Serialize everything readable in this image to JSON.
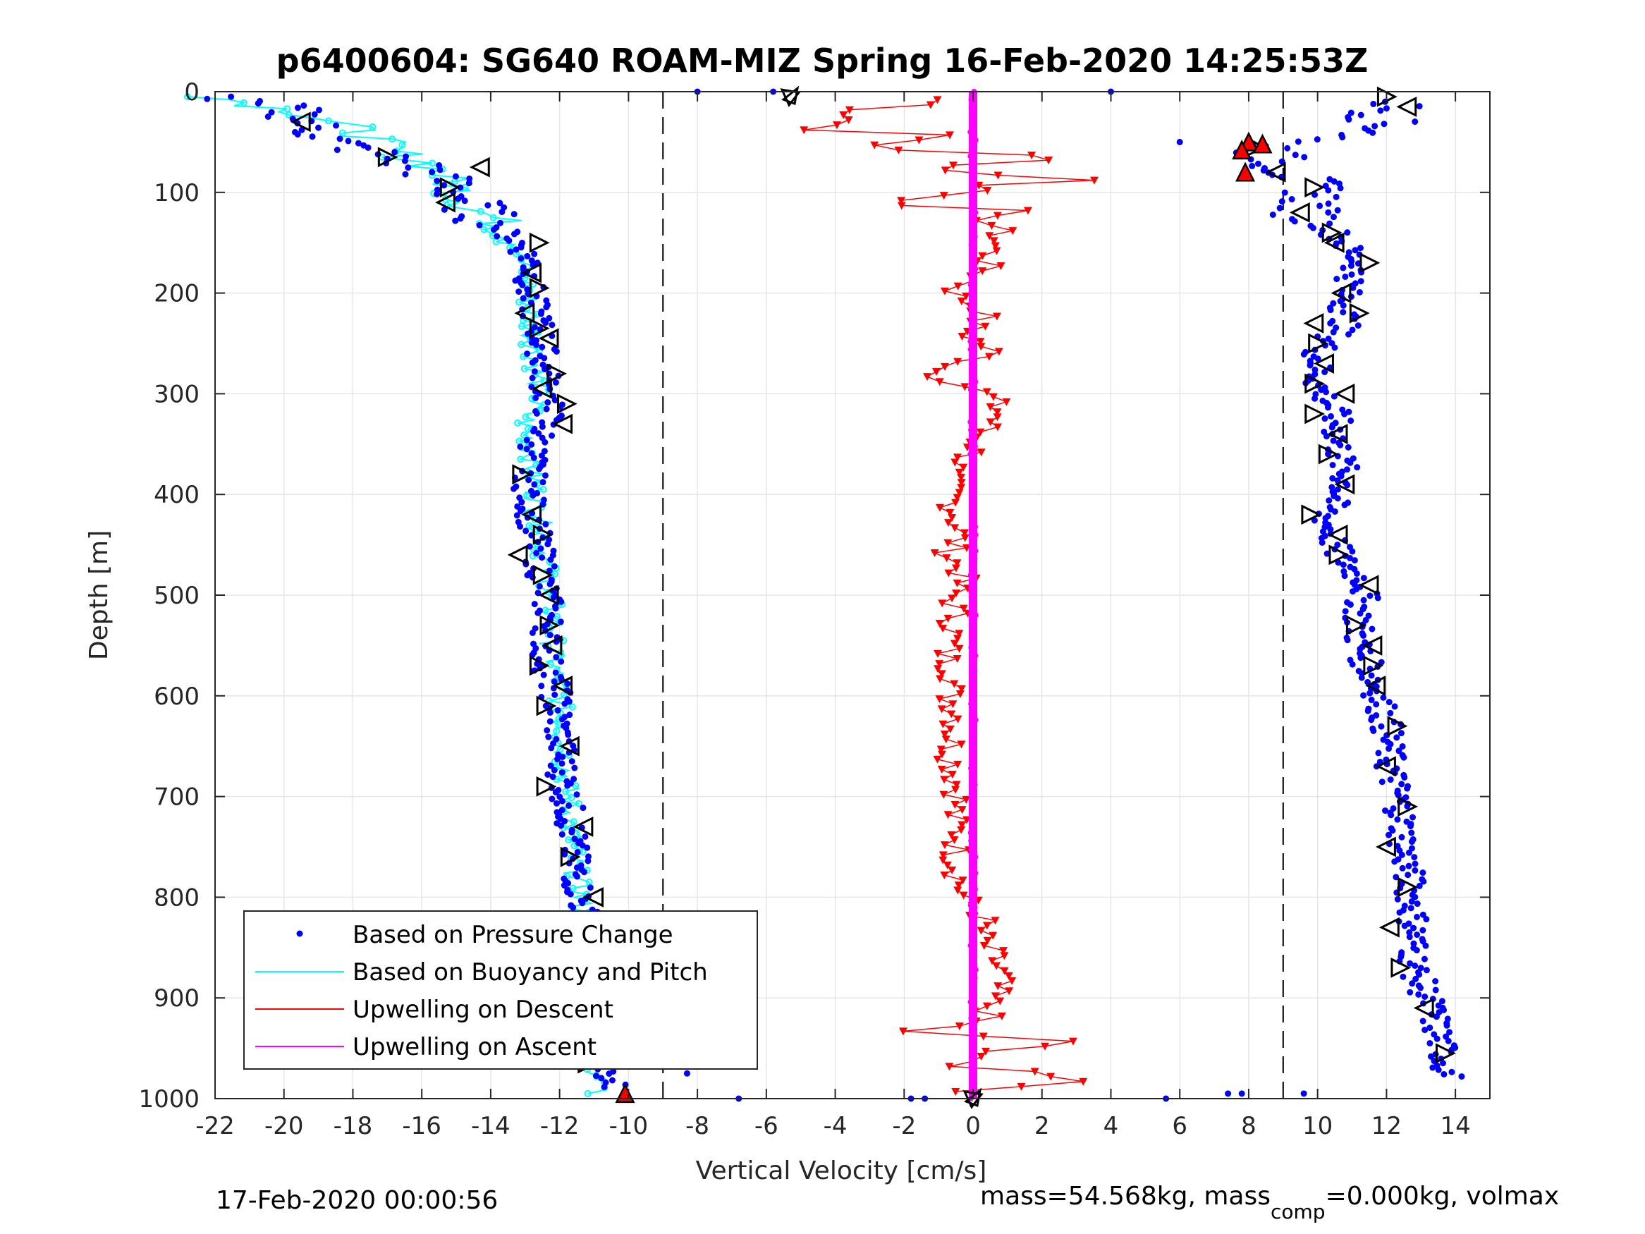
{
  "chart_data": {
    "type": "scatter",
    "title": "p6400604: SG640 ROAM-MIZ Spring 16-Feb-2020 14:25:53Z",
    "xlabel": "Vertical Velocity [cm/s]",
    "ylabel": "Depth [m]",
    "xlim": [
      -22,
      15
    ],
    "ylim": [
      1000,
      0
    ],
    "y_reversed": true,
    "grid": true,
    "xticks": [
      -22,
      -20,
      -18,
      -16,
      -14,
      -12,
      -10,
      -8,
      -6,
      -4,
      -2,
      0,
      2,
      4,
      6,
      8,
      10,
      12,
      14
    ],
    "xtick_labels": [
      "-22",
      "-20",
      "-18",
      "-16",
      "-14",
      "-12",
      "-10",
      "-8",
      "-6",
      "-4",
      "-2",
      "0",
      "2",
      "4",
      "6",
      "8",
      "10",
      "12",
      "14"
    ],
    "yticks": [
      0,
      100,
      200,
      300,
      400,
      500,
      600,
      700,
      800,
      900,
      1000
    ],
    "ytick_labels": [
      "0",
      "100",
      "200",
      "300",
      "400",
      "500",
      "600",
      "700",
      "800",
      "900",
      "1000"
    ],
    "reference_lines_x": [
      -9,
      9
    ],
    "legend_position": "lower-left",
    "colors": {
      "pressure": "#0000ff",
      "buoyancy": "#00ffff",
      "descent": "#ff0000",
      "ascent": "#ff00ff",
      "marker_outline": "#000000"
    },
    "series": [
      {
        "name": "Based on Pressure Change",
        "style": "dots",
        "profiles": [
          {
            "phase": "descent",
            "points": [
              [
                -22,
                5
              ],
              [
                -21.5,
                10
              ],
              [
                -20,
                15
              ],
              [
                -19.5,
                25
              ],
              [
                -19,
                40
              ],
              [
                -18.5,
                50
              ],
              [
                -18,
                55
              ],
              [
                -17,
                65
              ],
              [
                -16,
                75
              ],
              [
                -15.3,
                90
              ],
              [
                -14.8,
                105
              ],
              [
                -14,
                130
              ],
              [
                -13.2,
                150
              ],
              [
                -12.8,
                170
              ],
              [
                -12.9,
                200
              ],
              [
                -12.6,
                230
              ],
              [
                -12.5,
                260
              ],
              [
                -12.4,
                290
              ],
              [
                -12.3,
                320
              ],
              [
                -12.8,
                360
              ],
              [
                -12.9,
                400
              ],
              [
                -12.7,
                440
              ],
              [
                -12.5,
                480
              ],
              [
                -12.3,
                520
              ],
              [
                -12.4,
                560
              ],
              [
                -12.1,
                600
              ],
              [
                -12.0,
                640
              ],
              [
                -11.9,
                680
              ],
              [
                -11.7,
                720
              ],
              [
                -11.6,
                760
              ],
              [
                -11.4,
                800
              ],
              [
                -11.1,
                840
              ],
              [
                -10.8,
                880
              ],
              [
                -10.8,
                920
              ],
              [
                -10.9,
                960
              ],
              [
                -10.4,
                990
              ]
            ]
          },
          {
            "phase": "ascent",
            "points": [
              [
                12.4,
                10
              ],
              [
                11.8,
                25
              ],
              [
                12.0,
                40
              ],
              [
                9.0,
                50
              ],
              [
                8.5,
                60
              ],
              [
                9.2,
                80
              ],
              [
                10.0,
                100
              ],
              [
                9.6,
                120
              ],
              [
                10.5,
                140
              ],
              [
                11.2,
                170
              ],
              [
                10.8,
                200
              ],
              [
                10.8,
                230
              ],
              [
                10.0,
                260
              ],
              [
                10.0,
                290
              ],
              [
                10.5,
                320
              ],
              [
                10.6,
                350
              ],
              [
                10.8,
                390
              ],
              [
                10.2,
                420
              ],
              [
                10.6,
                460
              ],
              [
                11.4,
                490
              ],
              [
                11.2,
                520
              ],
              [
                11.2,
                550
              ],
              [
                11.7,
                590
              ],
              [
                12.0,
                630
              ],
              [
                12.1,
                670
              ],
              [
                12.4,
                710
              ],
              [
                12.5,
                750
              ],
              [
                12.7,
                790
              ],
              [
                12.8,
                830
              ],
              [
                12.8,
                870
              ],
              [
                13.3,
                910
              ],
              [
                13.6,
                950
              ],
              [
                13.8,
                980
              ]
            ]
          }
        ],
        "outliers": [
          [
            -5.8,
            0
          ],
          [
            -8,
            0
          ],
          [
            4,
            0
          ],
          [
            6,
            50
          ],
          [
            -8.3,
            975
          ],
          [
            -8.2,
            940
          ],
          [
            -6.8,
            1000
          ],
          [
            -1.8,
            1000
          ],
          [
            -1.4,
            1000
          ],
          [
            5.6,
            1000
          ],
          [
            7.4,
            995
          ],
          [
            7.8,
            995
          ],
          [
            9.6,
            995
          ]
        ]
      },
      {
        "name": "Based on Buoyancy and Pitch",
        "style": "line-with-circles",
        "points": [
          [
            -22,
            5
          ],
          [
            -20.5,
            15
          ],
          [
            -19.5,
            20
          ],
          [
            -18.5,
            30
          ],
          [
            -17.5,
            45
          ],
          [
            -16.8,
            60
          ],
          [
            -15.8,
            72
          ],
          [
            -15.3,
            85
          ],
          [
            -14.9,
            100
          ],
          [
            -14.5,
            115
          ],
          [
            -13.7,
            130
          ],
          [
            -13.2,
            150
          ],
          [
            -13.0,
            180
          ],
          [
            -12.9,
            210
          ],
          [
            -12.8,
            240
          ],
          [
            -12.7,
            270
          ],
          [
            -12.6,
            300
          ],
          [
            -13.0,
            330
          ],
          [
            -12.8,
            360
          ],
          [
            -12.7,
            400
          ],
          [
            -12.5,
            440
          ],
          [
            -12.4,
            480
          ],
          [
            -12.2,
            520
          ],
          [
            -12.2,
            560
          ],
          [
            -12.0,
            600
          ],
          [
            -11.9,
            640
          ],
          [
            -11.8,
            680
          ],
          [
            -11.7,
            720
          ],
          [
            -11.6,
            760
          ],
          [
            -11.4,
            800
          ],
          [
            -11.3,
            840
          ],
          [
            -11.2,
            880
          ],
          [
            -11.1,
            920
          ],
          [
            -11.0,
            960
          ],
          [
            -10.9,
            990
          ]
        ]
      },
      {
        "name": "Upwelling on Descent",
        "style": "line-with-down-triangles",
        "points": [
          [
            -1.0,
            10
          ],
          [
            -2.5,
            20
          ],
          [
            -4.2,
            35
          ],
          [
            -1.5,
            45
          ],
          [
            -2.8,
            55
          ],
          [
            0.5,
            62
          ],
          [
            2.0,
            70
          ],
          [
            -1.5,
            80
          ],
          [
            3.8,
            85
          ],
          [
            0.8,
            95
          ],
          [
            -1.2,
            105
          ],
          [
            0.2,
            120
          ],
          [
            0.8,
            140
          ],
          [
            0.5,
            160
          ],
          [
            0.3,
            180
          ],
          [
            -0.6,
            200
          ],
          [
            0.4,
            220
          ],
          [
            -0.2,
            240
          ],
          [
            0.6,
            260
          ],
          [
            -1.2,
            280
          ],
          [
            0.4,
            300
          ],
          [
            0.8,
            320
          ],
          [
            0.2,
            340
          ],
          [
            0.0,
            360
          ],
          [
            -0.8,
            380
          ],
          [
            -0.6,
            400
          ],
          [
            -0.5,
            420
          ],
          [
            -0.4,
            440
          ],
          [
            -0.7,
            460
          ],
          [
            -0.3,
            480
          ],
          [
            -0.6,
            500
          ],
          [
            -0.5,
            520
          ],
          [
            -0.6,
            540
          ],
          [
            -0.8,
            560
          ],
          [
            -0.5,
            580
          ],
          [
            -0.7,
            600
          ],
          [
            -0.4,
            620
          ],
          [
            -0.6,
            640
          ],
          [
            -0.6,
            660
          ],
          [
            -0.5,
            680
          ],
          [
            -0.4,
            700
          ],
          [
            -0.6,
            720
          ],
          [
            -0.4,
            740
          ],
          [
            -0.5,
            760
          ],
          [
            -0.4,
            780
          ],
          [
            -0.3,
            800
          ],
          [
            0.3,
            820
          ],
          [
            0.2,
            840
          ],
          [
            0.6,
            860
          ],
          [
            0.8,
            880
          ],
          [
            0.5,
            900
          ],
          [
            0.4,
            920
          ],
          [
            -2.0,
            935
          ],
          [
            3.0,
            945
          ],
          [
            -1.6,
            960
          ],
          [
            2.8,
            975
          ],
          [
            0.6,
            990
          ]
        ]
      },
      {
        "name": "Upwelling on Ascent",
        "style": "thick-line-with-dots",
        "points": [
          [
            0,
            0
          ],
          [
            0,
            100
          ],
          [
            0,
            200
          ],
          [
            0,
            300
          ],
          [
            0,
            400
          ],
          [
            0,
            500
          ],
          [
            0,
            600
          ],
          [
            0,
            700
          ],
          [
            0,
            800
          ],
          [
            0,
            900
          ],
          [
            0,
            1000
          ]
        ]
      }
    ],
    "triangle_markers": {
      "description": "open triangles along the velocity profiles",
      "descent": [
        [
          -19.5,
          30
        ],
        [
          -17,
          65
        ],
        [
          -14.3,
          75
        ],
        [
          -15.2,
          95
        ],
        [
          -15.3,
          110
        ],
        [
          -12.6,
          150
        ],
        [
          -12.8,
          180
        ],
        [
          -12.6,
          195
        ],
        [
          -13.0,
          220
        ],
        [
          -12.6,
          235
        ],
        [
          -12.3,
          245
        ],
        [
          -12.1,
          280
        ],
        [
          -12.5,
          295
        ],
        [
          -11.8,
          310
        ],
        [
          -11.9,
          330
        ],
        [
          -13.1,
          380
        ],
        [
          -12.8,
          420
        ],
        [
          -12.5,
          440
        ],
        [
          -13.2,
          460
        ],
        [
          -12.5,
          480
        ],
        [
          -12.3,
          500
        ],
        [
          -12.3,
          530
        ],
        [
          -12.2,
          550
        ],
        [
          -12.6,
          570
        ],
        [
          -11.9,
          590
        ],
        [
          -12.4,
          610
        ],
        [
          -11.7,
          650
        ],
        [
          -12.4,
          690
        ],
        [
          -11.3,
          730
        ],
        [
          -11.7,
          760
        ],
        [
          -11.0,
          800
        ],
        [
          -11.4,
          830
        ],
        [
          -10.7,
          860
        ],
        [
          -11.0,
          900
        ],
        [
          -11.0,
          930
        ],
        [
          -11.2,
          965
        ]
      ],
      "ascent": [
        [
          12.0,
          5
        ],
        [
          12.6,
          15
        ],
        [
          8.2,
          55
        ],
        [
          8.8,
          80
        ],
        [
          9.9,
          95
        ],
        [
          9.5,
          120
        ],
        [
          10.4,
          140
        ],
        [
          10.5,
          150
        ],
        [
          11.5,
          170
        ],
        [
          10.7,
          200
        ],
        [
          11.2,
          220
        ],
        [
          9.9,
          230
        ],
        [
          10.0,
          250
        ],
        [
          10.2,
          270
        ],
        [
          9.9,
          290
        ],
        [
          10.8,
          300
        ],
        [
          9.9,
          320
        ],
        [
          10.6,
          340
        ],
        [
          10.3,
          360
        ],
        [
          10.8,
          390
        ],
        [
          9.8,
          420
        ],
        [
          10.6,
          440
        ],
        [
          10.6,
          460
        ],
        [
          11.5,
          490
        ],
        [
          11.1,
          530
        ],
        [
          11.6,
          550
        ],
        [
          11.6,
          570
        ],
        [
          11.7,
          590
        ],
        [
          12.3,
          630
        ],
        [
          12.0,
          670
        ],
        [
          12.6,
          710
        ],
        [
          12.0,
          750
        ],
        [
          12.6,
          790
        ],
        [
          12.1,
          830
        ],
        [
          12.4,
          870
        ],
        [
          13.1,
          910
        ],
        [
          13.7,
          955
        ]
      ]
    },
    "red_markers": [
      [
        8.0,
        50
      ],
      [
        7.8,
        58
      ],
      [
        8.4,
        52
      ],
      [
        7.9,
        80
      ],
      [
        -10.1,
        995
      ]
    ],
    "star_markers": [
      [
        -5.3,
        5
      ],
      [
        0,
        1000
      ]
    ],
    "footer_left": "17-Feb-2020 00:00:56",
    "footer_right_parts": [
      "mass=54.568kg, mass",
      "comp",
      "=0.000kg, volmax"
    ]
  }
}
